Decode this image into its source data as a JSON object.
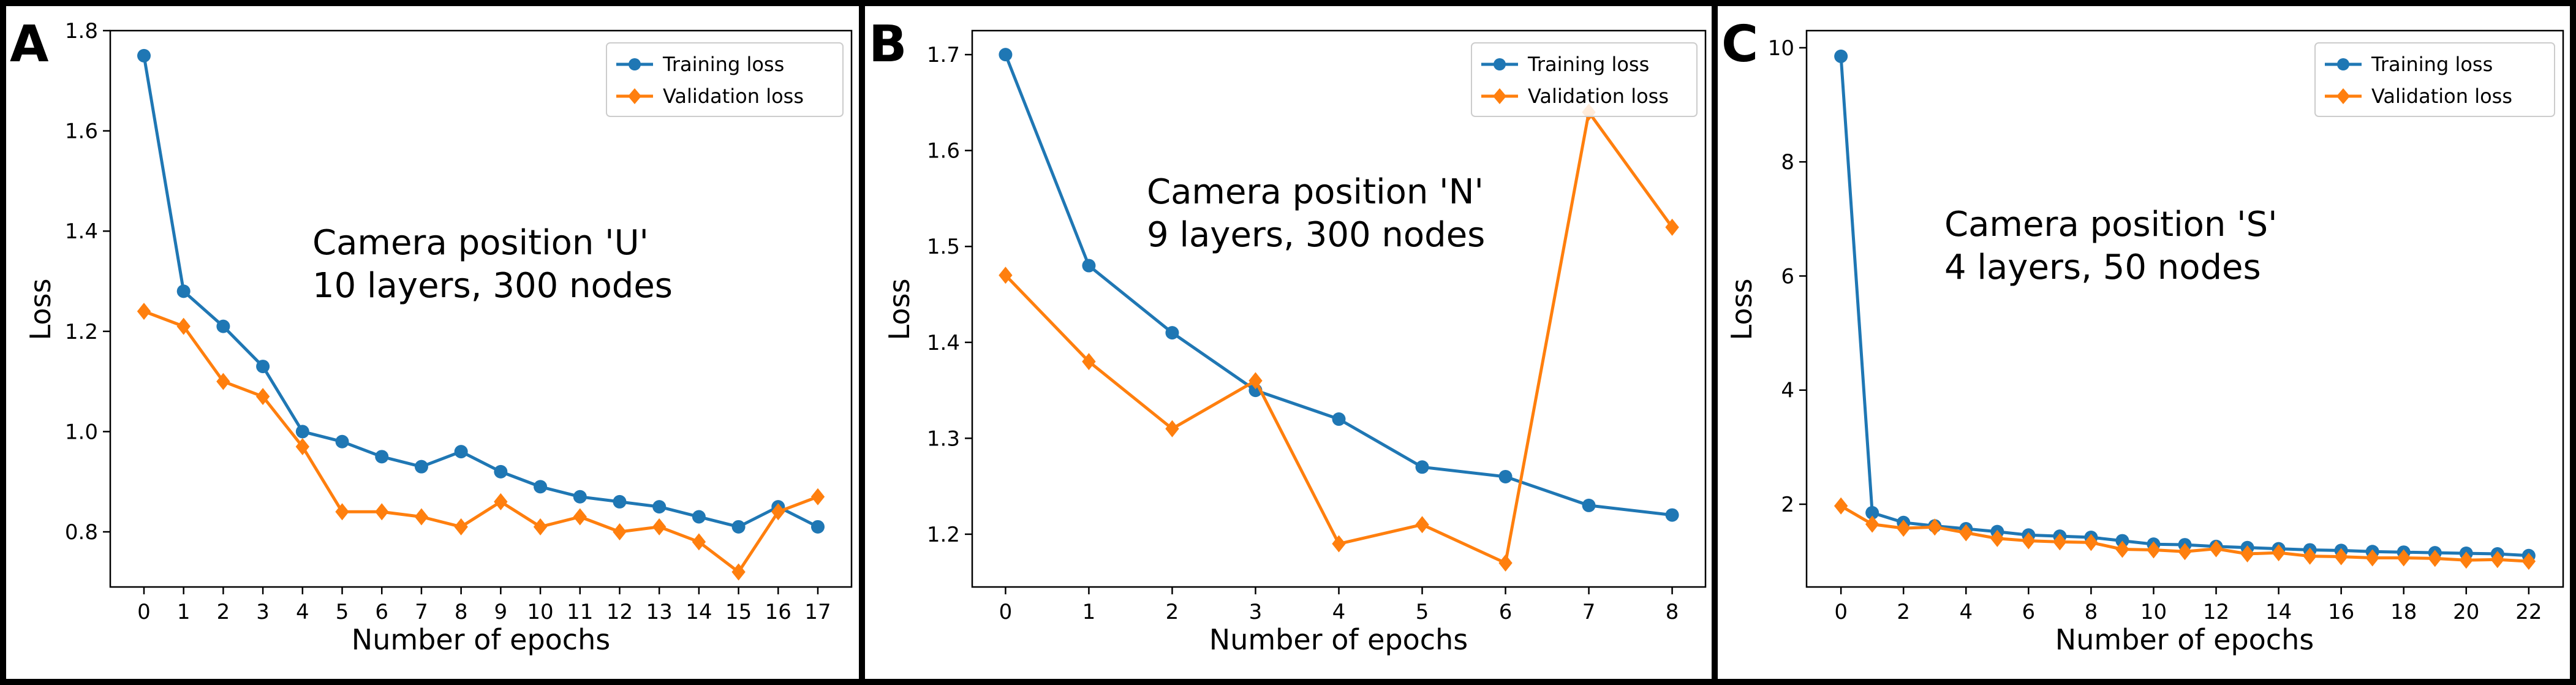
{
  "colors": {
    "training": "#1f77b4",
    "validation": "#ff7f0e",
    "frame": "#000000"
  },
  "chart_data": [
    {
      "type": "line",
      "panel_label": "A",
      "title": "",
      "xlabel": "Number of epochs",
      "ylabel": "Loss",
      "annotation": [
        "Camera position 'U'",
        "10 layers, 300 nodes"
      ],
      "legend_position": "top-right",
      "x": [
        0,
        1,
        2,
        3,
        4,
        5,
        6,
        7,
        8,
        9,
        10,
        11,
        12,
        13,
        14,
        15,
        16,
        17
      ],
      "x_ticks": [
        0,
        1,
        2,
        3,
        4,
        5,
        6,
        7,
        8,
        9,
        10,
        11,
        12,
        13,
        14,
        15,
        16,
        17
      ],
      "y_ticks": [
        0.8,
        1.0,
        1.2,
        1.4,
        1.6,
        1.8
      ],
      "y_tick_labels": [
        "0.8",
        "1.0",
        "1.2",
        "1.4",
        "1.6",
        "1.8"
      ],
      "xlim": [
        -0.85,
        17.85
      ],
      "ylim": [
        0.69,
        1.8
      ],
      "series": [
        {
          "name": "Training loss",
          "marker": "circle",
          "values": [
            1.75,
            1.28,
            1.21,
            1.13,
            1.0,
            0.98,
            0.95,
            0.93,
            0.96,
            0.92,
            0.89,
            0.87,
            0.86,
            0.85,
            0.83,
            0.81,
            0.85,
            0.81
          ]
        },
        {
          "name": "Validation loss",
          "marker": "diamond",
          "values": [
            1.24,
            1.21,
            1.1,
            1.07,
            0.97,
            0.84,
            0.84,
            0.83,
            0.81,
            0.86,
            0.81,
            0.83,
            0.8,
            0.81,
            0.78,
            0.72,
            0.84,
            0.87
          ]
        }
      ]
    },
    {
      "type": "line",
      "panel_label": "B",
      "title": "",
      "xlabel": "Number of epochs",
      "ylabel": "Loss",
      "annotation": [
        "Camera position 'N'",
        "9 layers, 300 nodes"
      ],
      "legend_position": "top-right",
      "x": [
        0,
        1,
        2,
        3,
        4,
        5,
        6,
        7,
        8
      ],
      "x_ticks": [
        0,
        1,
        2,
        3,
        4,
        5,
        6,
        7,
        8
      ],
      "y_ticks": [
        1.2,
        1.3,
        1.4,
        1.5,
        1.6,
        1.7
      ],
      "y_tick_labels": [
        "1.2",
        "1.3",
        "1.4",
        "1.5",
        "1.6",
        "1.7"
      ],
      "xlim": [
        -0.4,
        8.4
      ],
      "ylim": [
        1.145,
        1.725
      ],
      "series": [
        {
          "name": "Training loss",
          "marker": "circle",
          "values": [
            1.7,
            1.48,
            1.41,
            1.35,
            1.32,
            1.27,
            1.26,
            1.23,
            1.22
          ]
        },
        {
          "name": "Validation loss",
          "marker": "diamond",
          "values": [
            1.47,
            1.38,
            1.31,
            1.36,
            1.19,
            1.21,
            1.17,
            1.64,
            1.52
          ]
        }
      ]
    },
    {
      "type": "line",
      "panel_label": "C",
      "title": "",
      "xlabel": "Number of epochs",
      "ylabel": "Loss",
      "annotation": [
        "Camera position 'S'",
        "4 layers, 50 nodes"
      ],
      "legend_position": "top-right",
      "x": [
        0,
        1,
        2,
        3,
        4,
        5,
        6,
        7,
        8,
        9,
        10,
        11,
        12,
        13,
        14,
        15,
        16,
        17,
        18,
        19,
        20,
        21,
        22
      ],
      "x_ticks": [
        0,
        2,
        4,
        6,
        8,
        10,
        12,
        14,
        16,
        18,
        20,
        22
      ],
      "y_ticks": [
        2,
        4,
        6,
        8,
        10
      ],
      "y_tick_labels": [
        "2",
        "4",
        "6",
        "8",
        "10"
      ],
      "xlim": [
        -1.1,
        23.1
      ],
      "ylim": [
        0.55,
        10.3
      ],
      "series": [
        {
          "name": "Training loss",
          "marker": "circle",
          "values": [
            9.85,
            1.85,
            1.68,
            1.62,
            1.57,
            1.52,
            1.46,
            1.44,
            1.42,
            1.36,
            1.3,
            1.29,
            1.26,
            1.24,
            1.22,
            1.2,
            1.19,
            1.17,
            1.16,
            1.15,
            1.14,
            1.13,
            1.1
          ]
        },
        {
          "name": "Validation loss",
          "marker": "diamond",
          "values": [
            1.97,
            1.65,
            1.58,
            1.6,
            1.5,
            1.4,
            1.36,
            1.34,
            1.33,
            1.21,
            1.2,
            1.17,
            1.22,
            1.13,
            1.15,
            1.09,
            1.08,
            1.06,
            1.06,
            1.05,
            1.02,
            1.03,
            1.0
          ]
        }
      ]
    }
  ]
}
